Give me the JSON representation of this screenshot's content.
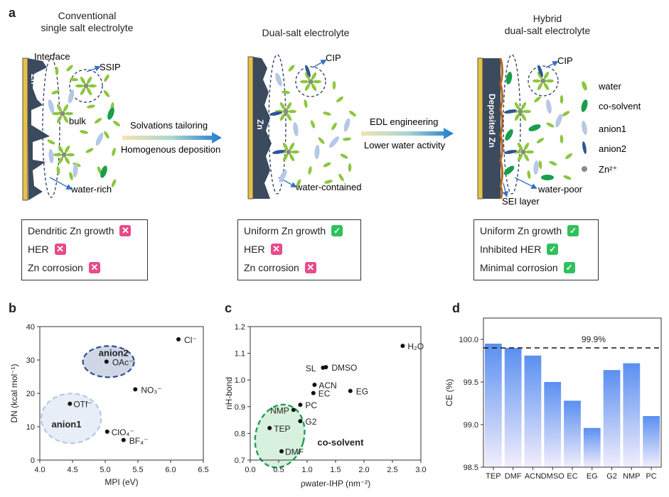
{
  "panel_a": {
    "label": "a",
    "titles": [
      "Conventional\nsingle salt electrolyte",
      "Dual-salt electrolyte",
      "Hybrid\ndual-salt electrolyte"
    ],
    "zn_label": "Zn",
    "deposited_zn": "Deposited Zn",
    "interface": "Interface",
    "ssip": "SSIP",
    "cip1": "CIP",
    "cip2": "CIP",
    "bulk": "bulk",
    "water_rich": "water-rich",
    "water_contained": "water-contained",
    "water_poor": "water-poor",
    "sei_layer": "SEI layer",
    "arrow1_top": "Solvations tailoring",
    "arrow1_bottom": "Homogenous deposition",
    "arrow2_top": "EDL engineering",
    "arrow2_bottom": "Lower water activity",
    "legend": [
      "water",
      "co-solvent",
      "anion1",
      "anion2",
      "Zn²⁺"
    ],
    "boxes": [
      [
        {
          "text": "Dendritic Zn growth",
          "ok": false
        },
        {
          "text": "HER",
          "ok": false
        },
        {
          "text": "Zn corrosion",
          "ok": false
        }
      ],
      [
        {
          "text": "Uniform Zn growth",
          "ok": true
        },
        {
          "text": "HER",
          "ok": false
        },
        {
          "text": "Zn corrosion",
          "ok": false
        }
      ],
      [
        {
          "text": "Uniform Zn growth",
          "ok": true
        },
        {
          "text": "Inhibited HER",
          "ok": true
        },
        {
          "text": "Minimal corrosion",
          "ok": true
        }
      ]
    ],
    "colors": {
      "water": "#8cc63e",
      "cosolvent": "#1a9e4b",
      "anion1": "#b6c8e4",
      "anion2": "#2f5597",
      "zn": "#8a8a80",
      "electrode": "#3b4a5c",
      "current": "#e8c04a",
      "sei": "#b5651d"
    }
  },
  "chart_data": [
    {
      "label": "b",
      "type": "scatter",
      "xlabel": "MPI (eV)",
      "ylabel": "DN (kcal mol⁻¹)",
      "xlim": [
        4.0,
        6.5
      ],
      "ylim": [
        0,
        40
      ],
      "xticks": [
        "4.0",
        "4.5",
        "5.0",
        "5.5",
        "6.0",
        "6.5"
      ],
      "yticks": [
        "0",
        "10",
        "20",
        "30",
        "40"
      ],
      "points": [
        {
          "name": "Cl⁻",
          "x": 6.12,
          "y": 36.2
        },
        {
          "name": "OAc⁻",
          "x": 5.02,
          "y": 29.5
        },
        {
          "name": "NO₃⁻",
          "x": 5.46,
          "y": 21.2
        },
        {
          "name": "OTf⁻",
          "x": 4.46,
          "y": 16.9
        },
        {
          "name": "ClO₄⁻",
          "x": 5.03,
          "y": 8.5
        },
        {
          "name": "BF₄⁻",
          "x": 5.28,
          "y": 6.0
        }
      ],
      "groups": [
        "anion2",
        "anion1"
      ]
    },
    {
      "label": "c",
      "type": "scatter",
      "xlabel": "ρwater-IHP (nm⁻²)",
      "ylabel": "nH-bond",
      "xlim": [
        0.0,
        3.0
      ],
      "ylim": [
        0.7,
        1.2
      ],
      "xticks": [
        "0.0",
        "0.5",
        "1.0",
        "1.5",
        "2.0",
        "2.5",
        "3.0"
      ],
      "yticks": [
        "0.7",
        "0.8",
        "0.9",
        "1.0",
        "1.1",
        "1.2"
      ],
      "points": [
        {
          "name": "H₂O",
          "x": 2.68,
          "y": 1.128
        },
        {
          "name": "SL",
          "x": 1.28,
          "y": 1.046
        },
        {
          "name": "DMSO",
          "x": 1.33,
          "y": 1.048
        },
        {
          "name": "ACN",
          "x": 1.13,
          "y": 0.982
        },
        {
          "name": "EC",
          "x": 1.11,
          "y": 0.951
        },
        {
          "name": "EG",
          "x": 1.76,
          "y": 0.959
        },
        {
          "name": "PC",
          "x": 0.88,
          "y": 0.907
        },
        {
          "name": "NMP",
          "x": 0.76,
          "y": 0.888
        },
        {
          "name": "G2",
          "x": 0.88,
          "y": 0.846
        },
        {
          "name": "TEP",
          "x": 0.34,
          "y": 0.82
        },
        {
          "name": "DMF",
          "x": 0.55,
          "y": 0.733
        }
      ],
      "group": "co-solvent"
    },
    {
      "label": "d",
      "type": "bar",
      "ylabel": "CE (%)",
      "ylim": [
        98.5,
        100.25
      ],
      "yticks": [
        "98.5",
        "99.0",
        "99.5",
        "100.0"
      ],
      "categories": [
        "TEP",
        "DMF",
        "ACN",
        "DMSO",
        "EC",
        "EG",
        "G2",
        "NMP",
        "PC"
      ],
      "values": [
        99.95,
        99.9,
        99.81,
        99.5,
        99.28,
        98.96,
        99.64,
        99.72,
        99.1
      ],
      "reference": 99.9,
      "reference_label": "99.9%"
    }
  ]
}
